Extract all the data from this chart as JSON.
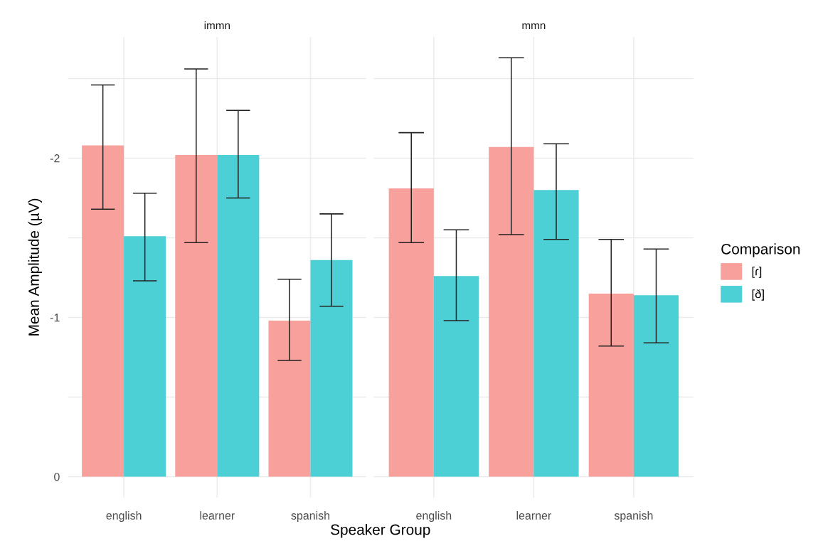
{
  "chart_data": [
    {
      "type": "bar",
      "title": "immn",
      "ylabel": "Mean Amplitude (µV)",
      "xlabel": "Speaker Group",
      "categories": [
        "english",
        "learner",
        "spanish"
      ],
      "grid": true,
      "legend": "right",
      "legend_title": "Comparison",
      "ylim": [
        0.13,
        -2.76
      ],
      "yticks": [
        0,
        {
          "value": -0.5,
          "label": null
        },
        -1,
        {
          "value": -1.5,
          "label": null
        },
        -2,
        {
          "value": -2.5,
          "label": null
        }
      ],
      "series": [
        {
          "name": "[ɾ]",
          "color": "#f8a09b",
          "values": [
            -2.08,
            -2.02,
            -0.98
          ],
          "errors": [
            [
              -2.46,
              -1.68
            ],
            [
              -2.56,
              -1.47
            ],
            [
              -1.24,
              -0.73
            ]
          ]
        },
        {
          "name": "[ð]",
          "color": "#4ccfd5",
          "values": [
            -1.51,
            -2.02,
            -1.36
          ],
          "errors": [
            [
              -1.78,
              -1.23
            ],
            [
              -2.3,
              -1.75
            ],
            [
              -1.65,
              -1.07
            ]
          ]
        }
      ]
    },
    {
      "type": "bar",
      "title": "mmn",
      "categories": [
        "english",
        "learner",
        "spanish"
      ],
      "grid": true,
      "tick_labels": "x",
      "ylim": [
        0.13,
        -2.76
      ],
      "yticks": [
        0,
        {
          "value": -0.5,
          "label": null
        },
        -1,
        {
          "value": -1.5,
          "label": null
        },
        -2,
        {
          "value": -2.5,
          "label": null
        }
      ],
      "series": [
        {
          "color": "#f8a09b",
          "values": [
            -1.81,
            -2.07,
            -1.15
          ],
          "errors": [
            [
              -2.16,
              -1.47
            ],
            [
              -2.63,
              -1.52
            ],
            [
              -1.49,
              -0.82
            ]
          ]
        },
        {
          "color": "#4ccfd5",
          "values": [
            -1.26,
            -1.8,
            -1.14
          ],
          "errors": [
            [
              -1.55,
              -0.98
            ],
            [
              -2.09,
              -1.49
            ],
            [
              -1.43,
              -0.84
            ]
          ]
        }
      ]
    }
  ]
}
